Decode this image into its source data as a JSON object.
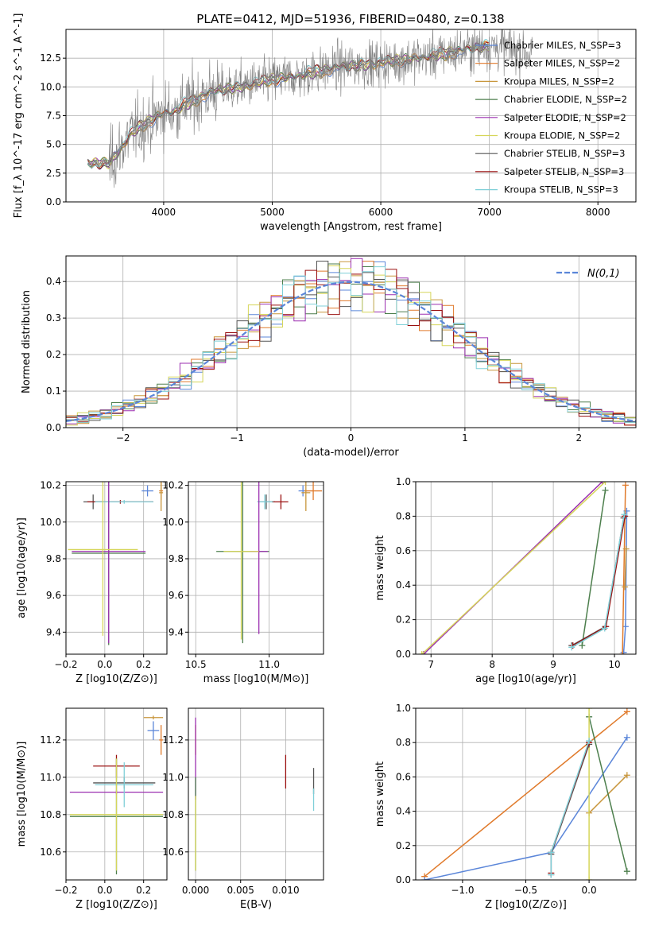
{
  "figure": {
    "title": "PLATE=0412, MJD=51936, FIBERID=0480, z=0.138",
    "model_names": [
      "Chabrier MILES, N_SSP=3",
      "Salpeter MILES, N_SSP=2",
      "Kroupa MILES, N_SSP=2",
      "Chabrier ELODIE, N_SSP=2",
      "Salpeter ELODIE, N_SSP=2",
      "Kroupa ELODIE, N_SSP=2",
      "Chabrier STELIB, N_SSP=3",
      "Salpeter STELIB, N_SSP=3",
      "Kroupa STELIB, N_SSP=3"
    ],
    "model_colors": [
      "#5b86d9",
      "#e07a2b",
      "#c8963c",
      "#4d7f4d",
      "#9b2fb0",
      "#d6d65a",
      "#555555",
      "#9a1010",
      "#7fcfd8"
    ],
    "data_color": "#808080"
  },
  "chart_data": [
    {
      "id": "spectrum",
      "type": "line",
      "title": "PLATE=0412, MJD=51936, FIBERID=0480, z=0.138",
      "xlabel": "wavelength [Angstrom, rest frame]",
      "ylabel": "Flux [f_λ 10^-17 erg cm^-2 s^-1 A^-1]",
      "xlim": [
        3100,
        8350
      ],
      "ylim": [
        0,
        15
      ],
      "xticks": [
        4000,
        5000,
        6000,
        7000,
        8000
      ],
      "yticks": [
        0.0,
        2.5,
        5.0,
        7.5,
        10.0,
        12.5
      ],
      "ytick_labels": [
        "0.0",
        "2.5",
        "5.0",
        "7.5",
        "10.0",
        "12.5"
      ],
      "legend": "upper-right",
      "legend_entries": [
        "Chabrier MILES, N_SSP=3",
        "Salpeter MILES, N_SSP=2",
        "Kroupa MILES, N_SSP=2",
        "Chabrier ELODIE, N_SSP=2",
        "Salpeter ELODIE, N_SSP=2",
        "Kroupa ELODIE, N_SSP=2",
        "Chabrier STELIB, N_SSP=3",
        "Salpeter STELIB, N_SSP=3",
        "Kroupa STELIB, N_SSP=3"
      ],
      "continuum": {
        "x": [
          3300,
          3500,
          3600,
          3700,
          3800,
          3900,
          4000,
          4100,
          4200,
          4300,
          4400,
          4500,
          4700,
          4900,
          5000,
          5200,
          5400,
          5600,
          5800,
          6000,
          6200,
          6400,
          6600,
          6800,
          7000,
          7200,
          7400
        ],
        "y": [
          3.3,
          3.4,
          4.6,
          5.9,
          6.6,
          7.2,
          7.7,
          7.9,
          8.5,
          8.9,
          9.4,
          9.7,
          10.0,
          10.4,
          10.6,
          10.9,
          11.3,
          11.7,
          11.9,
          12.1,
          12.3,
          12.6,
          12.9,
          13.3,
          13.6,
          13.3,
          12.9
        ]
      },
      "model_range": [
        3300,
        7000
      ]
    },
    {
      "id": "residuals",
      "type": "line",
      "xlabel": "(data-model)/error",
      "ylabel": "Normed distribution",
      "xlim": [
        -2.5,
        2.5
      ],
      "ylim": [
        0,
        0.47
      ],
      "xticks": [
        -2,
        -1,
        0,
        1,
        2
      ],
      "xtick_labels": [
        "−2",
        "−1",
        "0",
        "1",
        "2"
      ],
      "yticks": [
        0.0,
        0.1,
        0.2,
        0.3,
        0.4
      ],
      "ytick_labels": [
        "0.0",
        "0.1",
        "0.2",
        "0.3",
        "0.4"
      ],
      "legend": "upper-right",
      "reference_curve": {
        "name": "N(0,1)",
        "mean": 0,
        "sigma": 1,
        "color": "#5b86d9"
      },
      "bin_width": 0.1
    },
    {
      "id": "z-age",
      "type": "errorbar",
      "xlabel": "Z [log10(Z/Z⊙)]",
      "ylabel": "age [log10(age/yr)]",
      "xlim": [
        -0.2,
        0.32
      ],
      "ylim": [
        9.28,
        10.22
      ],
      "xticks": [
        -0.2,
        0.0,
        0.2
      ],
      "xtick_labels": [
        "−0.2",
        "0.0",
        "0.2"
      ],
      "yticks": [
        9.4,
        9.6,
        9.8,
        10.0,
        10.2
      ],
      "ytick_labels": [
        "9.4",
        "9.6",
        "9.8",
        "10.0",
        "10.2"
      ],
      "points": [
        {
          "model": 0,
          "x": 0.22,
          "y": 10.17,
          "xerr": 0.03,
          "yerr": 0.03
        },
        {
          "model": 1,
          "x": 0.29,
          "y": 10.17,
          "xerr": 0.01,
          "yerr": 0.05
        },
        {
          "model": 2,
          "x": 0.29,
          "y": 10.16,
          "xerr": 0.01,
          "yerr": 0.1
        },
        {
          "model": 6,
          "x": -0.06,
          "y": 10.11,
          "xerr": 0.05,
          "yerr": 0.04
        },
        {
          "model": 7,
          "x": 0.08,
          "y": 10.11,
          "xerr": 0.17,
          "yerr": 0.01
        },
        {
          "model": 8,
          "x": 0.1,
          "y": 10.11,
          "xerr": 0.15,
          "yerr": 0.01
        },
        {
          "model": 3,
          "x": 0.02,
          "y": 9.83,
          "xerr": 0.19,
          "yerr": 0.5
        },
        {
          "model": 4,
          "x": 0.02,
          "y": 9.84,
          "xerr": 0.19,
          "yerr": 0.5
        },
        {
          "model": 5,
          "x": -0.01,
          "y": 9.85,
          "xerr": 0.18,
          "yerr": 0.47
        }
      ]
    },
    {
      "id": "mass-age",
      "type": "errorbar",
      "xlabel": "mass [log10(M/M⊙)]",
      "ylabel": "",
      "xlim": [
        10.45,
        11.37
      ],
      "ylim": [
        9.28,
        10.22
      ],
      "xticks": [
        10.5,
        11.0
      ],
      "xtick_labels": [
        "10.5",
        "11.0"
      ],
      "yticks": [
        9.4,
        9.6,
        9.8,
        10.0,
        10.2
      ],
      "ytick_labels": [
        "9.4",
        "9.6",
        "9.8",
        "10.0",
        "10.2"
      ],
      "points": [
        {
          "model": 0,
          "x": 11.23,
          "y": 10.17,
          "xerr": 0.03,
          "yerr": 0.03
        },
        {
          "model": 1,
          "x": 11.3,
          "y": 10.17,
          "xerr": 0.06,
          "yerr": 0.05
        },
        {
          "model": 2,
          "x": 11.25,
          "y": 10.16,
          "xerr": 0.03,
          "yerr": 0.1
        },
        {
          "model": 6,
          "x": 10.98,
          "y": 10.11,
          "xerr": 0.06,
          "yerr": 0.04
        },
        {
          "model": 7,
          "x": 11.08,
          "y": 10.11,
          "xerr": 0.05,
          "yerr": 0.04
        },
        {
          "model": 8,
          "x": 10.97,
          "y": 10.11,
          "xerr": 0.05,
          "yerr": 0.04
        },
        {
          "model": 3,
          "x": 10.82,
          "y": 9.84,
          "xerr": 0.18,
          "yerr": 0.5
        },
        {
          "model": 4,
          "x": 10.93,
          "y": 9.84,
          "xerr": 0.06,
          "yerr": 0.45
        },
        {
          "model": 5,
          "x": 10.81,
          "y": 9.84,
          "xerr": 0.12,
          "yerr": 0.48
        }
      ]
    },
    {
      "id": "age-weight",
      "type": "line",
      "xlabel": "age [log10(age/yr)]",
      "ylabel": "mass weight",
      "xlim": [
        6.75,
        10.35
      ],
      "ylim": [
        0,
        1
      ],
      "xticks": [
        7,
        8,
        9,
        10
      ],
      "xtick_labels": [
        "7",
        "8",
        "9",
        "10"
      ],
      "yticks": [
        0.0,
        0.2,
        0.4,
        0.6,
        0.8,
        1.0
      ],
      "ytick_labels": [
        "0.0",
        "0.2",
        "0.4",
        "0.6",
        "0.8",
        "1.0"
      ],
      "series": [
        {
          "model": 0,
          "x": [
            10.15,
            10.18,
            10.2
          ],
          "y": [
            0.01,
            0.16,
            0.83
          ]
        },
        {
          "model": 1,
          "x": [
            10.13,
            10.18
          ],
          "y": [
            0.0,
            0.98
          ]
        },
        {
          "model": 2,
          "x": [
            10.17,
            10.19
          ],
          "y": [
            0.39,
            0.61
          ]
        },
        {
          "model": 3,
          "x": [
            9.47,
            9.85
          ],
          "y": [
            0.05,
            0.95
          ]
        },
        {
          "model": 4,
          "x": [
            6.88,
            9.8
          ],
          "y": [
            0.0,
            1.0
          ]
        },
        {
          "model": 5,
          "x": [
            6.85,
            9.85
          ],
          "y": [
            0.0,
            1.0
          ]
        },
        {
          "model": 6,
          "x": [
            9.3,
            9.85,
            10.15
          ],
          "y": [
            0.05,
            0.16,
            0.79
          ]
        },
        {
          "model": 7,
          "x": [
            9.32,
            9.86,
            10.17
          ],
          "y": [
            0.05,
            0.16,
            0.8
          ]
        },
        {
          "model": 8,
          "x": [
            9.3,
            9.84,
            10.16
          ],
          "y": [
            0.04,
            0.15,
            0.81
          ]
        }
      ]
    },
    {
      "id": "z-mass",
      "type": "errorbar",
      "xlabel": "Z [log10(Z/Z⊙)]",
      "ylabel": "mass [log10(M/M⊙)]",
      "xlim": [
        -0.2,
        0.32
      ],
      "ylim": [
        10.45,
        11.37
      ],
      "xticks": [
        -0.2,
        0.0,
        0.2
      ],
      "xtick_labels": [
        "−0.2",
        "0.0",
        "0.2"
      ],
      "yticks": [
        10.6,
        10.8,
        11.0,
        11.2
      ],
      "ytick_labels": [
        "10.6",
        "10.8",
        "11.0",
        "11.2"
      ],
      "points": [
        {
          "model": 0,
          "x": 0.25,
          "y": 11.25,
          "xerr": 0.03,
          "yerr": 0.05
        },
        {
          "model": 1,
          "x": 0.29,
          "y": 11.2,
          "xerr": 0.01,
          "yerr": 0.08
        },
        {
          "model": 2,
          "x": 0.25,
          "y": 11.32,
          "xerr": 0.05,
          "yerr": 0.01
        },
        {
          "model": 7,
          "x": 0.06,
          "y": 11.06,
          "xerr": 0.12,
          "yerr": 0.06
        },
        {
          "model": 6,
          "x": 0.1,
          "y": 10.97,
          "xerr": 0.16,
          "yerr": 0.03
        },
        {
          "model": 4,
          "x": 0.06,
          "y": 10.92,
          "xerr": 0.24,
          "yerr": 0.01
        },
        {
          "model": 8,
          "x": 0.1,
          "y": 10.96,
          "xerr": 0.15,
          "yerr": 0.12
        },
        {
          "model": 3,
          "x": 0.06,
          "y": 10.79,
          "xerr": 0.24,
          "yerr": 0.31
        },
        {
          "model": 5,
          "x": 0.06,
          "y": 10.8,
          "xerr": 0.24,
          "yerr": 0.3
        }
      ]
    },
    {
      "id": "ebv-mass",
      "type": "errorbar",
      "xlabel": "E(B-V)",
      "ylabel": "",
      "xlim": [
        -0.0008,
        0.0142
      ],
      "ylim": [
        10.45,
        11.37
      ],
      "xticks": [
        0.0,
        0.005,
        0.01
      ],
      "xtick_labels": [
        "0.000",
        "0.005",
        "0.010"
      ],
      "yticks": [
        10.6,
        10.8,
        11.0,
        11.2
      ],
      "ytick_labels": [
        "10.6",
        "10.8",
        "11.0",
        "11.2"
      ],
      "points": [
        {
          "model": 1,
          "x": 0.0,
          "y": 11.2,
          "xerr": 0.0,
          "yerr": 0.08
        },
        {
          "model": 4,
          "x": 0.0,
          "y": 11.1,
          "xerr": 0.0,
          "yerr": 0.22
        },
        {
          "model": 3,
          "x": 0.0,
          "y": 10.75,
          "xerr": 0.0,
          "yerr": 0.25
        },
        {
          "model": 5,
          "x": 0.0,
          "y": 10.7,
          "xerr": 0.0,
          "yerr": 0.2
        },
        {
          "model": 7,
          "x": 0.01,
          "y": 11.03,
          "xerr": 0.0,
          "yerr": 0.09
        },
        {
          "model": 6,
          "x": 0.0131,
          "y": 10.98,
          "xerr": 0.0,
          "yerr": 0.07
        },
        {
          "model": 8,
          "x": 0.0131,
          "y": 10.88,
          "xerr": 0.0,
          "yerr": 0.06
        }
      ]
    },
    {
      "id": "z-weight",
      "type": "line",
      "xlabel": "Z [log10(Z/Z⊙)]",
      "ylabel": "mass weight",
      "xlim": [
        -1.37,
        0.37
      ],
      "ylim": [
        0,
        1
      ],
      "xticks": [
        -1.0,
        -0.5,
        0.0
      ],
      "xtick_labels": [
        "−1.0",
        "−0.5",
        "0.0"
      ],
      "yticks": [
        0.0,
        0.2,
        0.4,
        0.6,
        0.8,
        1.0
      ],
      "ytick_labels": [
        "0.0",
        "0.2",
        "0.4",
        "0.6",
        "0.8",
        "1.0"
      ],
      "series": [
        {
          "model": 1,
          "x": [
            -1.3,
            0.3
          ],
          "y": [
            0.02,
            0.98
          ]
        },
        {
          "model": 0,
          "x": [
            -1.3,
            -0.3,
            0.3
          ],
          "y": [
            0.0,
            0.16,
            0.83
          ]
        },
        {
          "model": 2,
          "x": [
            0.0,
            0.3
          ],
          "y": [
            0.39,
            0.61
          ]
        },
        {
          "model": 3,
          "x": [
            0.0,
            0.3
          ],
          "y": [
            0.95,
            0.05
          ]
        },
        {
          "model": 5,
          "x": [
            0.0,
            0.0
          ],
          "y": [
            0.0,
            1.0
          ]
        },
        {
          "model": 6,
          "x": [
            -0.3,
            -0.3,
            0.0
          ],
          "y": [
            0.03,
            0.15,
            0.79
          ]
        },
        {
          "model": 7,
          "x": [
            -0.3,
            -0.3,
            0.0
          ],
          "y": [
            0.04,
            0.16,
            0.8
          ]
        },
        {
          "model": 8,
          "x": [
            -0.3,
            -0.3,
            0.0
          ],
          "y": [
            0.03,
            0.16,
            0.81
          ]
        }
      ]
    }
  ]
}
